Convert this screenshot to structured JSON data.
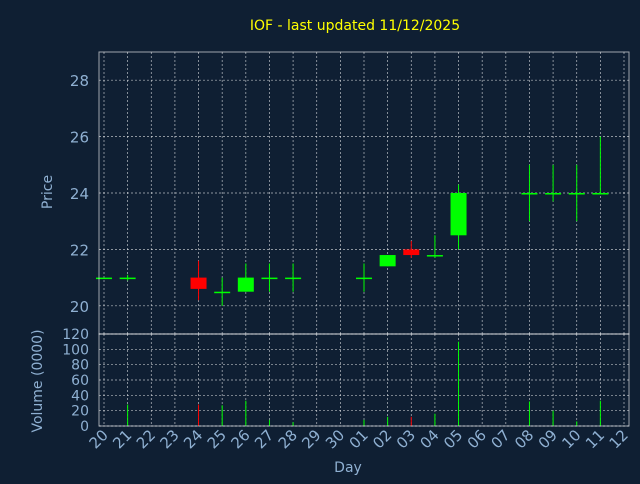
{
  "chart_data": {
    "type": "candlestick",
    "title": "IOF - last updated 11/12/2025",
    "xlabel": "Day",
    "price_panel": {
      "ylabel": "Price",
      "ylim": [
        19,
        29
      ],
      "yticks": [
        20,
        22,
        24,
        26,
        28
      ]
    },
    "volume_panel": {
      "ylabel": "Volume (0000)",
      "ylim": [
        0,
        120
      ],
      "yticks": [
        0,
        20,
        40,
        60,
        80,
        100,
        120
      ]
    },
    "grid": true,
    "categories": [
      "20",
      "21",
      "22",
      "23",
      "24",
      "25",
      "26",
      "27",
      "28",
      "29",
      "30",
      "01",
      "02",
      "03",
      "04",
      "05",
      "06",
      "07",
      "08",
      "09",
      "10",
      "11",
      "12"
    ],
    "candles": [
      {
        "day": "20",
        "open": 21.0,
        "high": 21.0,
        "low": 21.0,
        "close": 21.0,
        "volume": 0
      },
      {
        "day": "21",
        "open": 21.0,
        "high": 21.1,
        "low": 20.9,
        "close": 21.0,
        "volume": 28
      },
      {
        "day": "22",
        "open": null,
        "high": null,
        "low": null,
        "close": null,
        "volume": 0
      },
      {
        "day": "23",
        "open": null,
        "high": null,
        "low": null,
        "close": null,
        "volume": 0
      },
      {
        "day": "24",
        "open": 21.0,
        "high": 21.6,
        "low": 20.2,
        "close": 20.6,
        "volume": 28
      },
      {
        "day": "25",
        "open": 20.5,
        "high": 21.0,
        "low": 20.0,
        "close": 20.5,
        "volume": 27
      },
      {
        "day": "26",
        "open": 20.5,
        "high": 21.5,
        "low": 20.5,
        "close": 21.0,
        "volume": 33
      },
      {
        "day": "27",
        "open": 21.0,
        "high": 21.5,
        "low": 20.5,
        "close": 21.0,
        "volume": 8
      },
      {
        "day": "28",
        "open": 21.0,
        "high": 21.5,
        "low": 20.5,
        "close": 21.0,
        "volume": 5
      },
      {
        "day": "29",
        "open": null,
        "high": null,
        "low": null,
        "close": null,
        "volume": 0
      },
      {
        "day": "30",
        "open": null,
        "high": null,
        "low": null,
        "close": null,
        "volume": 0
      },
      {
        "day": "01",
        "open": 21.0,
        "high": 21.5,
        "low": 20.5,
        "close": 21.0,
        "volume": 8
      },
      {
        "day": "02",
        "open": 21.4,
        "high": 21.8,
        "low": 21.4,
        "close": 21.8,
        "volume": 12
      },
      {
        "day": "03",
        "open": 22.0,
        "high": 22.3,
        "low": 21.7,
        "close": 21.8,
        "volume": 12
      },
      {
        "day": "04",
        "open": 21.8,
        "high": 22.5,
        "low": 21.7,
        "close": 21.8,
        "volume": 16
      },
      {
        "day": "05",
        "open": 22.5,
        "high": 24.3,
        "low": 22.0,
        "close": 24.0,
        "volume": 110
      },
      {
        "day": "06",
        "open": null,
        "high": null,
        "low": null,
        "close": null,
        "volume": 0
      },
      {
        "day": "07",
        "open": null,
        "high": null,
        "low": null,
        "close": null,
        "volume": 0
      },
      {
        "day": "08",
        "open": 24.0,
        "high": 25.0,
        "low": 23.0,
        "close": 24.0,
        "volume": 32
      },
      {
        "day": "09",
        "open": 24.0,
        "high": 25.0,
        "low": 23.7,
        "close": 24.0,
        "volume": 20
      },
      {
        "day": "10",
        "open": 24.0,
        "high": 25.0,
        "low": 23.0,
        "close": 24.0,
        "volume": 6
      },
      {
        "day": "11",
        "open": 24.0,
        "high": 26.0,
        "low": 24.0,
        "close": 24.0,
        "volume": 33
      },
      {
        "day": "12",
        "open": null,
        "high": null,
        "low": null,
        "close": null,
        "volume": 0
      }
    ],
    "colors": {
      "background": "#0f1f33",
      "plot_background": "#0f1f33",
      "title": "#ffff00",
      "axis_text": "#8fb0d2",
      "grid": "#ffffff",
      "axis_line": "#ffffff",
      "up": "#00ff00",
      "down": "#ff0000",
      "flat": "#00ff00"
    }
  }
}
